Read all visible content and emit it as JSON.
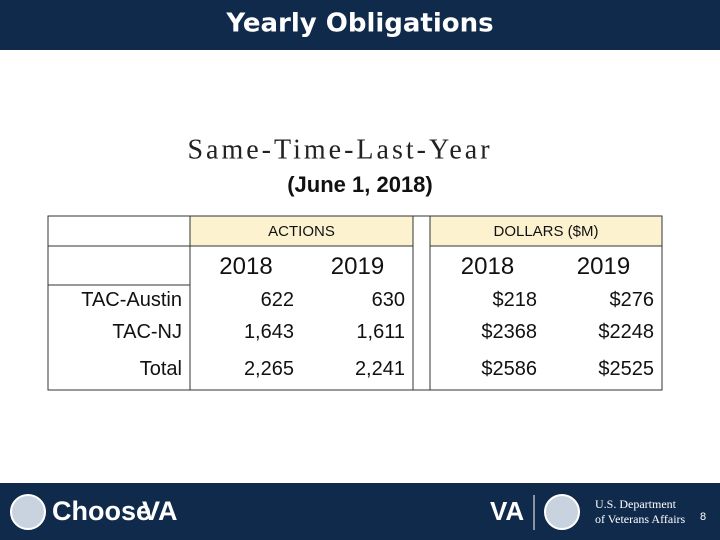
{
  "header": {
    "title": "Yearly Obligations"
  },
  "subtitle": "Same-Time-Last-Year",
  "date": "(June 1, 2018)",
  "table": {
    "groups": [
      "ACTIONS",
      "DOLLARS ($M)"
    ],
    "years": [
      "2018",
      "2019",
      "2018",
      "2019"
    ],
    "rows": [
      [
        "TAC-Austin",
        "622",
        "630",
        "$218",
        "$276"
      ],
      [
        "TAC-NJ",
        "1,643",
        "1,611",
        "$2368",
        "$2248"
      ],
      [
        "Total",
        "2,265",
        "2,241",
        "$2586",
        "$2525"
      ]
    ]
  },
  "footer": {
    "brand": "Choose",
    "brand_mark": "VA",
    "va": "VA",
    "department_line1": "U.S. Department",
    "department_line2": "of Veterans Affairs",
    "page": "8"
  }
}
